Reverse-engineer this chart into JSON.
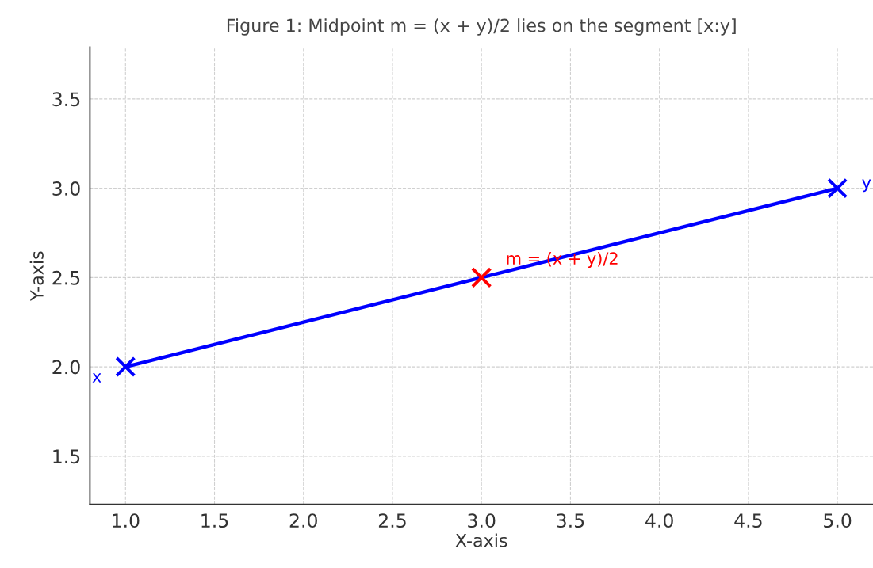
{
  "chart_data": {
    "type": "line",
    "title": "Figure 1: Midpoint m = (x + y)/2 lies on the segment [x:y]",
    "xlabel": "X-axis",
    "ylabel": "Y-axis",
    "series": [
      {
        "color": "#0000ff",
        "x": [
          1,
          5
        ],
        "values": [
          2,
          3
        ],
        "marker": "cross"
      },
      {
        "type": "scatter",
        "name": "m = (x + y)/2",
        "color": "#ff0000",
        "x": [
          3
        ],
        "values": [
          2.5
        ],
        "marker": "cross"
      }
    ],
    "annotations": [
      {
        "text": "x",
        "x": 1,
        "y": 2
      },
      {
        "text": "y",
        "x": 5,
        "y": 3
      }
    ],
    "xlim": [
      0.8,
      5.2
    ],
    "ylim": [
      1.23,
      3.79
    ],
    "xticks": [
      {
        "value": 1,
        "label": "1.0"
      },
      {
        "value": 1.5,
        "label": "1.5"
      },
      {
        "value": 2,
        "label": "2.0"
      },
      {
        "value": 2.5,
        "label": "2.5"
      },
      {
        "value": 3,
        "label": "3.0"
      },
      {
        "value": 3.5,
        "label": "3.5"
      },
      {
        "value": 4,
        "label": "4.0"
      },
      {
        "value": 4.5,
        "label": "4.5"
      },
      {
        "value": 5,
        "label": "5.0"
      }
    ],
    "yticks": [
      1.5,
      {
        "value": 2,
        "label": "2.0"
      },
      2.5,
      {
        "value": 3,
        "label": "3.0"
      },
      3.5
    ],
    "grid": true,
    "line_style": "solid",
    "legend": false
  }
}
